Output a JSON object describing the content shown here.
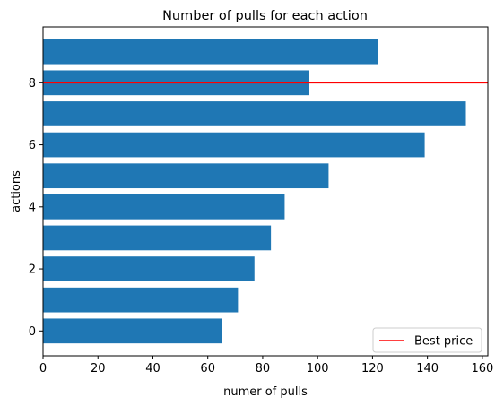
{
  "chart_data": {
    "type": "bar",
    "orientation": "horizontal",
    "title": "Number of pulls for each action",
    "xlabel": "numer of pulls",
    "ylabel": "actions",
    "categories": [
      0,
      1,
      2,
      3,
      4,
      5,
      6,
      7,
      8,
      9
    ],
    "values": [
      65,
      71,
      77,
      83,
      88,
      104,
      139,
      154,
      97,
      122
    ],
    "xlim": [
      0,
      162
    ],
    "ylim": [
      -0.8,
      9.8
    ],
    "xticks": [
      0,
      20,
      40,
      60,
      80,
      100,
      120,
      140,
      160
    ],
    "yticks": [
      0,
      2,
      4,
      6,
      8
    ],
    "bar_color": "#1f77b4",
    "grid": false,
    "hline": {
      "y": 8,
      "color": "#ff0000",
      "label": "Best price"
    },
    "legend": {
      "placement": "lower-right",
      "entries": [
        "Best price"
      ]
    }
  }
}
